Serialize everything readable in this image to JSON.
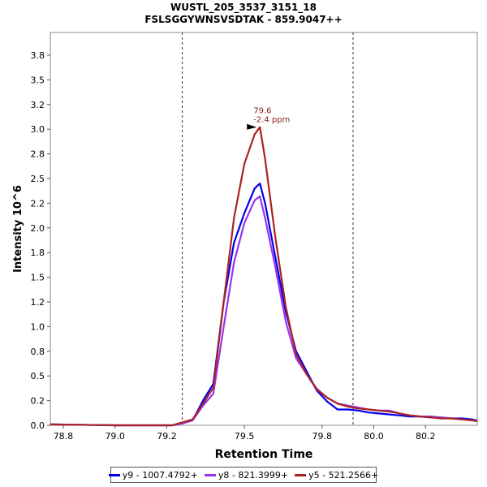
{
  "chart_data": {
    "type": "line",
    "title": "WUSTL_205_3537_3151_18",
    "subtitle": "FSLSGGYWNSVSDTAK - 859.9047++",
    "xlabel": "Retention Time",
    "ylabel": "Intensity 10^6",
    "xlim": [
      78.75,
      80.4
    ],
    "ylim": [
      0,
      3.98
    ],
    "xticks": [
      "78.8",
      "79.0",
      "79.2",
      "79.5",
      "79.8",
      "80.0",
      "80.2"
    ],
    "xtick_values": [
      78.8,
      79.0,
      79.2,
      79.5,
      79.8,
      80.0,
      80.2
    ],
    "yticks": [
      "0.0",
      "0.2",
      "0.5",
      "0.8",
      "1.0",
      "1.2",
      "1.5",
      "1.8",
      "2.0",
      "2.2",
      "2.5",
      "2.8",
      "3.0",
      "3.2",
      "3.5",
      "3.8"
    ],
    "ytick_values": [
      0.0,
      0.25,
      0.5,
      0.75,
      1.0,
      1.25,
      1.5,
      1.75,
      2.0,
      2.25,
      2.5,
      2.75,
      3.0,
      3.25,
      3.5,
      3.75
    ],
    "vlines": [
      79.26,
      79.92
    ],
    "annotation": {
      "x": 79.56,
      "y": 3.02,
      "lines": [
        "79.6",
        "-2.4 ppm"
      ],
      "color": "#8b1a1a"
    },
    "grid": false,
    "legend_position": "bottom",
    "series": [
      {
        "name": "y9 - 1007.4792+",
        "color": "#0000ee",
        "x": [
          78.75,
          79.0,
          79.22,
          79.26,
          79.3,
          79.34,
          79.38,
          79.42,
          79.46,
          79.5,
          79.54,
          79.56,
          79.58,
          79.62,
          79.66,
          79.7,
          79.74,
          79.78,
          79.82,
          79.86,
          79.9,
          79.94,
          79.98,
          80.02,
          80.06,
          80.1,
          80.14,
          80.18,
          80.22,
          80.26,
          80.3,
          80.34,
          80.38,
          80.4
        ],
        "y": [
          0.01,
          0.0,
          0.0,
          0.02,
          0.05,
          0.25,
          0.42,
          1.25,
          1.85,
          2.15,
          2.4,
          2.45,
          2.25,
          1.7,
          1.15,
          0.75,
          0.55,
          0.35,
          0.24,
          0.16,
          0.16,
          0.15,
          0.13,
          0.12,
          0.11,
          0.1,
          0.09,
          0.09,
          0.08,
          0.08,
          0.07,
          0.07,
          0.06,
          0.05
        ]
      },
      {
        "name": "y8 - 821.3999+",
        "color": "#9933ee",
        "x": [
          78.75,
          79.0,
          79.22,
          79.26,
          79.3,
          79.34,
          79.38,
          79.42,
          79.46,
          79.5,
          79.54,
          79.56,
          79.58,
          79.62,
          79.66,
          79.7,
          79.74,
          79.78,
          79.82,
          79.86,
          79.9,
          79.94,
          79.98,
          80.02,
          80.06,
          80.1,
          80.14,
          80.18,
          80.22,
          80.26,
          80.3,
          80.34,
          80.38,
          80.4
        ],
        "y": [
          0.01,
          0.0,
          0.0,
          0.02,
          0.05,
          0.2,
          0.32,
          1.0,
          1.65,
          2.05,
          2.28,
          2.32,
          2.1,
          1.6,
          1.05,
          0.68,
          0.52,
          0.37,
          0.28,
          0.22,
          0.2,
          0.18,
          0.16,
          0.15,
          0.15,
          0.12,
          0.1,
          0.09,
          0.09,
          0.08,
          0.07,
          0.06,
          0.05,
          0.05
        ]
      },
      {
        "name": "y5 - 521.2566+",
        "color": "#aa2222",
        "x": [
          78.75,
          79.0,
          79.22,
          79.26,
          79.3,
          79.34,
          79.38,
          79.42,
          79.46,
          79.5,
          79.54,
          79.56,
          79.58,
          79.62,
          79.66,
          79.7,
          79.74,
          79.78,
          79.82,
          79.86,
          79.9,
          79.94,
          79.98,
          80.02,
          80.06,
          80.1,
          80.14,
          80.18,
          80.22,
          80.26,
          80.3,
          80.34,
          80.38,
          80.4
        ],
        "y": [
          0.01,
          0.0,
          0.0,
          0.03,
          0.06,
          0.22,
          0.38,
          1.25,
          2.1,
          2.65,
          2.95,
          3.02,
          2.7,
          1.9,
          1.2,
          0.72,
          0.52,
          0.36,
          0.28,
          0.22,
          0.19,
          0.17,
          0.16,
          0.15,
          0.14,
          0.12,
          0.1,
          0.09,
          0.08,
          0.07,
          0.07,
          0.06,
          0.05,
          0.04
        ]
      }
    ]
  }
}
